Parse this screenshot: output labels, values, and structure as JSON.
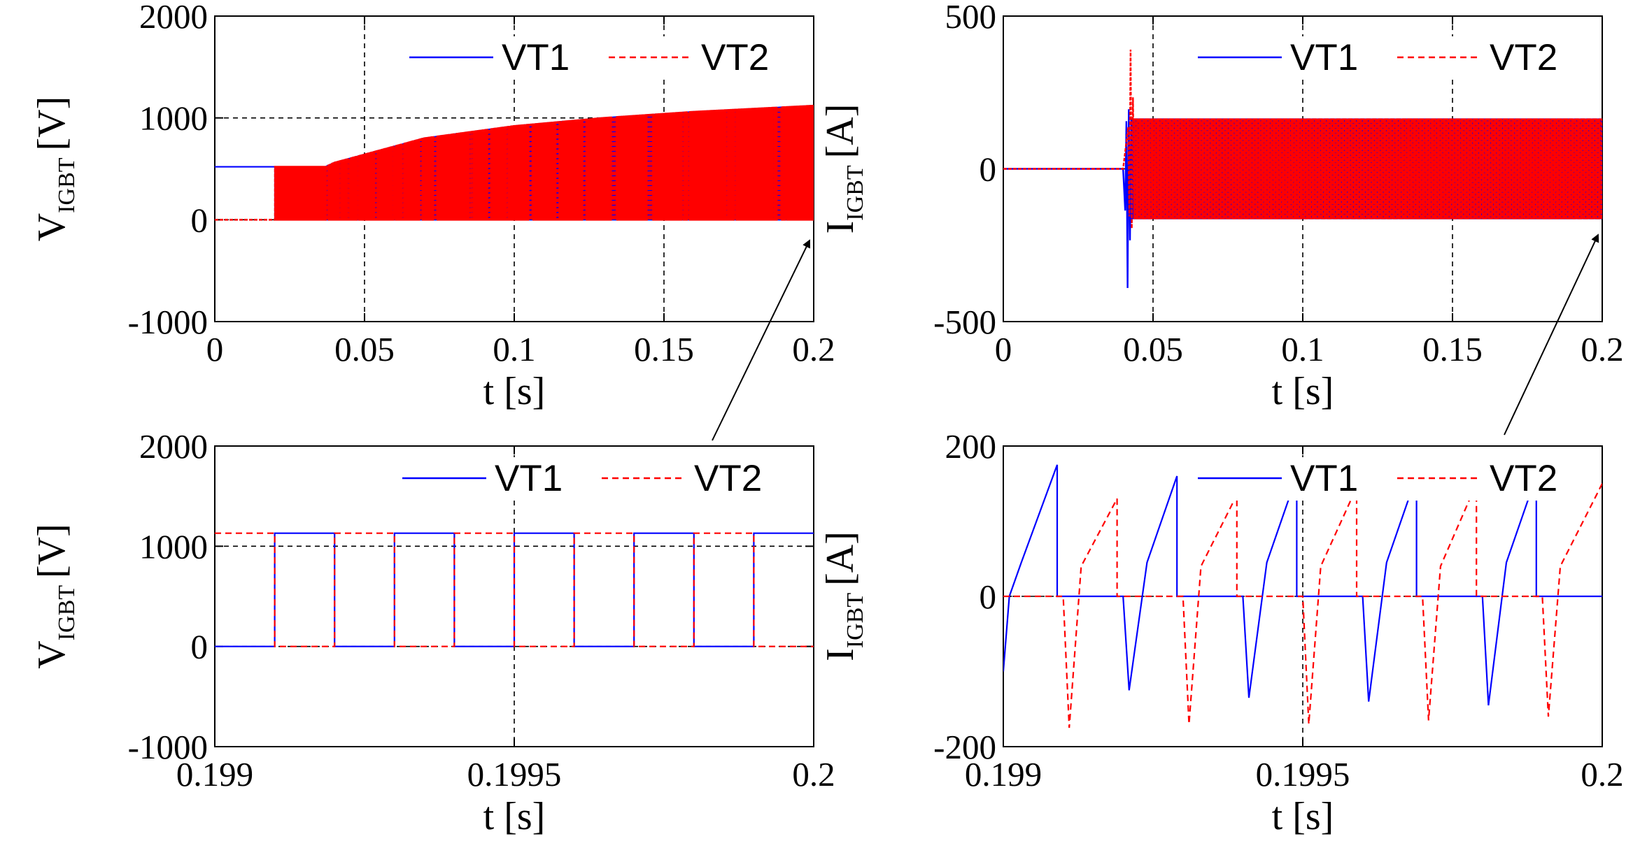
{
  "colors": {
    "vt1": "#0000ff",
    "vt2": "#ff0000",
    "grid": "#000000"
  },
  "chart_data": [
    {
      "id": "v_full",
      "type": "line",
      "xlabel": "t [s]",
      "ylabel_main": "V",
      "ylabel_sub": "IGBT",
      "ylabel_unit": "[V]",
      "xlim": [
        0,
        0.2
      ],
      "ylim": [
        -1000,
        2000
      ],
      "xticks": [
        0,
        0.05,
        0.1,
        0.15,
        0.2
      ],
      "xtick_labels": [
        "0",
        "0.05",
        "0.1",
        "0.15",
        "0.2"
      ],
      "yticks": [
        -1000,
        0,
        1000,
        2000
      ],
      "ytick_labels": [
        "-1000",
        "0",
        "1000",
        "2000"
      ],
      "legend": [
        "VT1",
        "VT2"
      ],
      "series": [
        {
          "name": "VT1",
          "kind": "switching_voltage",
          "idle_until": 0.02,
          "idle_level": 520,
          "envelope": {
            "t": [
              0.02,
              0.037,
              0.04,
              0.05,
              0.07,
              0.1,
              0.13,
              0.16,
              0.2
            ],
            "v": [
              520,
              520,
              560,
              640,
              800,
              920,
              1000,
              1060,
              1120
            ]
          }
        },
        {
          "name": "VT2",
          "kind": "switching_voltage",
          "idle_until": 0.02,
          "idle_level": 0,
          "envelope": {
            "t": [
              0.02,
              0.037,
              0.04,
              0.05,
              0.07,
              0.1,
              0.13,
              0.16,
              0.2
            ],
            "v": [
              520,
              520,
              560,
              640,
              800,
              920,
              1000,
              1060,
              1120
            ]
          }
        }
      ]
    },
    {
      "id": "i_full",
      "type": "line",
      "xlabel": "t [s]",
      "ylabel_main": "I",
      "ylabel_sub": "IGBT",
      "ylabel_unit": "[A]",
      "xlim": [
        0,
        0.2
      ],
      "ylim": [
        -500,
        500
      ],
      "xticks": [
        0,
        0.05,
        0.1,
        0.15,
        0.2
      ],
      "xtick_labels": [
        "0",
        "0.05",
        "0.1",
        "0.15",
        "0.2"
      ],
      "yticks": [
        -500,
        0,
        500
      ],
      "ytick_labels": [
        "-500",
        "0",
        "500"
      ],
      "legend": [
        "VT1",
        "VT2"
      ],
      "series": [
        {
          "name": "VT1",
          "kind": "switching_current",
          "zero_until": 0.04,
          "transient_peak": -390,
          "transient_at": 0.0415,
          "band": [
            -165,
            165
          ]
        },
        {
          "name": "VT2",
          "kind": "switching_current",
          "zero_until": 0.04,
          "transient_peak": 390,
          "transient_at": 0.0425,
          "band": [
            -165,
            165
          ]
        }
      ]
    },
    {
      "id": "v_zoom",
      "type": "line",
      "xlabel": "t [s]",
      "ylabel_main": "V",
      "ylabel_sub": "IGBT",
      "ylabel_unit": "[V]",
      "xlim": [
        0.199,
        0.2
      ],
      "ylim": [
        -1000,
        2000
      ],
      "xticks": [
        0.199,
        0.1995,
        0.2
      ],
      "xtick_labels": [
        "0.199",
        "0.1995",
        "0.2"
      ],
      "yticks": [
        -1000,
        0,
        1000,
        2000
      ],
      "ytick_labels": [
        "-1000",
        "0",
        "1000",
        "2000"
      ],
      "legend": [
        "VT1",
        "VT2"
      ],
      "series": [
        {
          "name": "VT1",
          "x": [
            0.199,
            0.1991,
            0.1991,
            0.1992,
            0.1992,
            0.1993,
            0.1993,
            0.1994,
            0.1994,
            0.1995,
            0.1995,
            0.1996,
            0.1996,
            0.1997,
            0.1997,
            0.1998,
            0.1998,
            0.1999,
            0.1999,
            0.2
          ],
          "y": [
            0,
            0,
            1130,
            1130,
            0,
            0,
            1130,
            1130,
            0,
            0,
            1130,
            1130,
            0,
            0,
            1130,
            1130,
            0,
            0,
            1130,
            1130
          ]
        },
        {
          "name": "VT2",
          "x": [
            0.199,
            0.1991,
            0.1991,
            0.1992,
            0.1992,
            0.1993,
            0.1993,
            0.1994,
            0.1994,
            0.1995,
            0.1995,
            0.1996,
            0.1996,
            0.1997,
            0.1997,
            0.1998,
            0.1998,
            0.1999,
            0.1999,
            0.2
          ],
          "y": [
            1130,
            1130,
            0,
            0,
            1130,
            1130,
            0,
            0,
            1130,
            1130,
            0,
            0,
            1130,
            1130,
            0,
            0,
            1130,
            1130,
            0,
            0
          ]
        }
      ]
    },
    {
      "id": "i_zoom",
      "type": "line",
      "xlabel": "t [s]",
      "ylabel_main": "I",
      "ylabel_sub": "IGBT",
      "ylabel_unit": "[A]",
      "xlim": [
        0.199,
        0.2
      ],
      "ylim": [
        -200,
        200
      ],
      "xticks": [
        0.199,
        0.1995,
        0.2
      ],
      "xtick_labels": [
        "0.199",
        "0.1995",
        "0.2"
      ],
      "yticks": [
        -200,
        0,
        200
      ],
      "ytick_labels": [
        "-200",
        "0",
        "200"
      ],
      "legend": [
        "VT1",
        "VT2"
      ],
      "series": [
        {
          "name": "VT1",
          "x": [
            0.199,
            0.19901,
            0.19903,
            0.19909,
            0.19909,
            0.1992,
            0.19921,
            0.19924,
            0.19929,
            0.19929,
            0.1994,
            0.19941,
            0.19944,
            0.19949,
            0.19949,
            0.1996,
            0.19961,
            0.19964,
            0.19969,
            0.19969,
            0.1998,
            0.19981,
            0.19984,
            0.19989,
            0.19989,
            0.2
          ],
          "y": [
            -100,
            0,
            45,
            175,
            0,
            0,
            -125,
            45,
            160,
            0,
            0,
            -135,
            45,
            160,
            0,
            0,
            -140,
            45,
            160,
            0,
            0,
            -145,
            45,
            160,
            0,
            0
          ]
        },
        {
          "name": "VT2",
          "x": [
            0.199,
            0.1991,
            0.19911,
            0.19913,
            0.19919,
            0.19919,
            0.1993,
            0.19931,
            0.19933,
            0.19939,
            0.19939,
            0.1995,
            0.19951,
            0.19953,
            0.19959,
            0.19959,
            0.1997,
            0.19971,
            0.19973,
            0.19979,
            0.19979,
            0.1999,
            0.19991,
            0.19993,
            0.2
          ],
          "y": [
            0,
            0,
            -175,
            40,
            130,
            0,
            0,
            -170,
            40,
            135,
            0,
            0,
            -170,
            40,
            145,
            0,
            0,
            -165,
            40,
            150,
            0,
            0,
            -160,
            40,
            150
          ]
        }
      ]
    }
  ]
}
